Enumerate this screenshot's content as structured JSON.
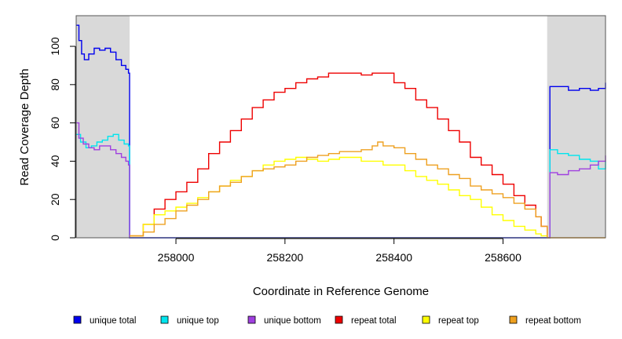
{
  "chart_data": {
    "type": "line",
    "title": "",
    "xlabel": "Coordinate in Reference Genome",
    "ylabel": "Read Coverage Depth",
    "xlim": [
      257817,
      258788
    ],
    "ylim": [
      0,
      116
    ],
    "x_ticks": [
      258000,
      258200,
      258400,
      258600
    ],
    "y_ticks": [
      0,
      20,
      40,
      60,
      80,
      100
    ],
    "grid": false,
    "legend_position": "bottom",
    "shaded_regions": [
      {
        "x0": 257817,
        "x1": 257915,
        "color": "#d9d9d9"
      },
      {
        "x0": 258681,
        "x1": 258788,
        "color": "#d9d9d9"
      }
    ],
    "series": [
      {
        "name": "unique total",
        "color": "#0000ee",
        "x": [
          257817,
          257822,
          257827,
          257832,
          257840,
          257850,
          257860,
          257870,
          257880,
          257890,
          257900,
          257908,
          257913,
          257915,
          258681,
          258686,
          258700,
          258720,
          258740,
          258760,
          258775,
          258788
        ],
        "y": [
          111,
          103,
          96,
          93,
          96,
          99,
          98,
          99,
          97,
          93,
          90,
          88,
          86,
          0,
          0,
          79,
          79,
          77,
          78,
          77,
          78,
          81
        ]
      },
      {
        "name": "unique top",
        "color": "#00e5ee",
        "x": [
          257817,
          257825,
          257835,
          257845,
          257855,
          257865,
          257875,
          257885,
          257895,
          257905,
          257913,
          257915,
          258681,
          258686,
          258700,
          258720,
          258740,
          258760,
          258775,
          258788
        ],
        "y": [
          54,
          50,
          47,
          48,
          50,
          51,
          53,
          54,
          51,
          49,
          48,
          0,
          0,
          46,
          44,
          43,
          41,
          40,
          36,
          40
        ]
      },
      {
        "name": "unique bottom",
        "color": "#a040e0",
        "x": [
          257817,
          257822,
          257830,
          257840,
          257850,
          257860,
          257870,
          257880,
          257890,
          257900,
          257908,
          257913,
          257915,
          258681,
          258686,
          258700,
          258720,
          258740,
          258760,
          258775,
          258788
        ],
        "y": [
          60,
          52,
          49,
          47,
          46,
          48,
          48,
          46,
          44,
          42,
          40,
          38,
          0,
          0,
          34,
          33,
          35,
          36,
          38,
          40,
          43
        ],
        "truncate_last_x": 258785
      },
      {
        "name": "repeat total",
        "color": "#ee0000",
        "x": [
          257915,
          257940,
          257960,
          257980,
          258000,
          258020,
          258040,
          258060,
          258080,
          258100,
          258120,
          258140,
          258160,
          258180,
          258200,
          258220,
          258240,
          258260,
          258280,
          258300,
          258320,
          258340,
          258360,
          258380,
          258400,
          258420,
          258440,
          258460,
          258480,
          258500,
          258520,
          258540,
          258560,
          258580,
          258600,
          258620,
          258640,
          258660,
          258670,
          258681
        ],
        "y": [
          1,
          7,
          15,
          20,
          24,
          29,
          36,
          44,
          50,
          56,
          62,
          68,
          72,
          76,
          78,
          81,
          83,
          84,
          86,
          86,
          86,
          85,
          86,
          86,
          81,
          78,
          72,
          68,
          62,
          56,
          50,
          42,
          38,
          33,
          28,
          22,
          17,
          11,
          6,
          0
        ]
      },
      {
        "name": "repeat top",
        "color": "#ffff00",
        "x": [
          257915,
          257940,
          257960,
          257980,
          258000,
          258020,
          258040,
          258060,
          258080,
          258100,
          258120,
          258140,
          258160,
          258180,
          258200,
          258220,
          258240,
          258260,
          258280,
          258300,
          258320,
          258340,
          258360,
          258380,
          258400,
          258420,
          258440,
          258460,
          258480,
          258500,
          258520,
          258540,
          258560,
          258580,
          258600,
          258620,
          258640,
          258660,
          258670,
          258681
        ],
        "y": [
          1,
          7,
          12,
          14,
          16,
          18,
          21,
          24,
          27,
          30,
          32,
          35,
          38,
          40,
          41,
          42,
          41,
          40,
          41,
          42,
          42,
          40,
          40,
          38,
          38,
          35,
          32,
          30,
          28,
          25,
          22,
          20,
          16,
          12,
          9,
          6,
          4,
          2,
          1,
          0
        ]
      },
      {
        "name": "repeat bottom",
        "color": "#eea020",
        "x": [
          257915,
          257940,
          257960,
          257980,
          258000,
          258020,
          258040,
          258060,
          258080,
          258100,
          258120,
          258140,
          258160,
          258180,
          258200,
          258220,
          258240,
          258260,
          258280,
          258300,
          258320,
          258340,
          258360,
          258370,
          258380,
          258400,
          258420,
          258440,
          258460,
          258480,
          258500,
          258520,
          258540,
          258560,
          258580,
          258600,
          258620,
          258640,
          258660,
          258670,
          258681,
          258788
        ],
        "y": [
          1,
          3,
          7,
          10,
          14,
          17,
          20,
          24,
          27,
          29,
          32,
          35,
          36,
          37,
          38,
          40,
          42,
          43,
          44,
          45,
          45,
          46,
          48,
          50,
          48,
          47,
          44,
          41,
          38,
          36,
          33,
          31,
          27,
          25,
          23,
          21,
          18,
          15,
          11,
          6,
          0,
          0
        ]
      }
    ]
  }
}
